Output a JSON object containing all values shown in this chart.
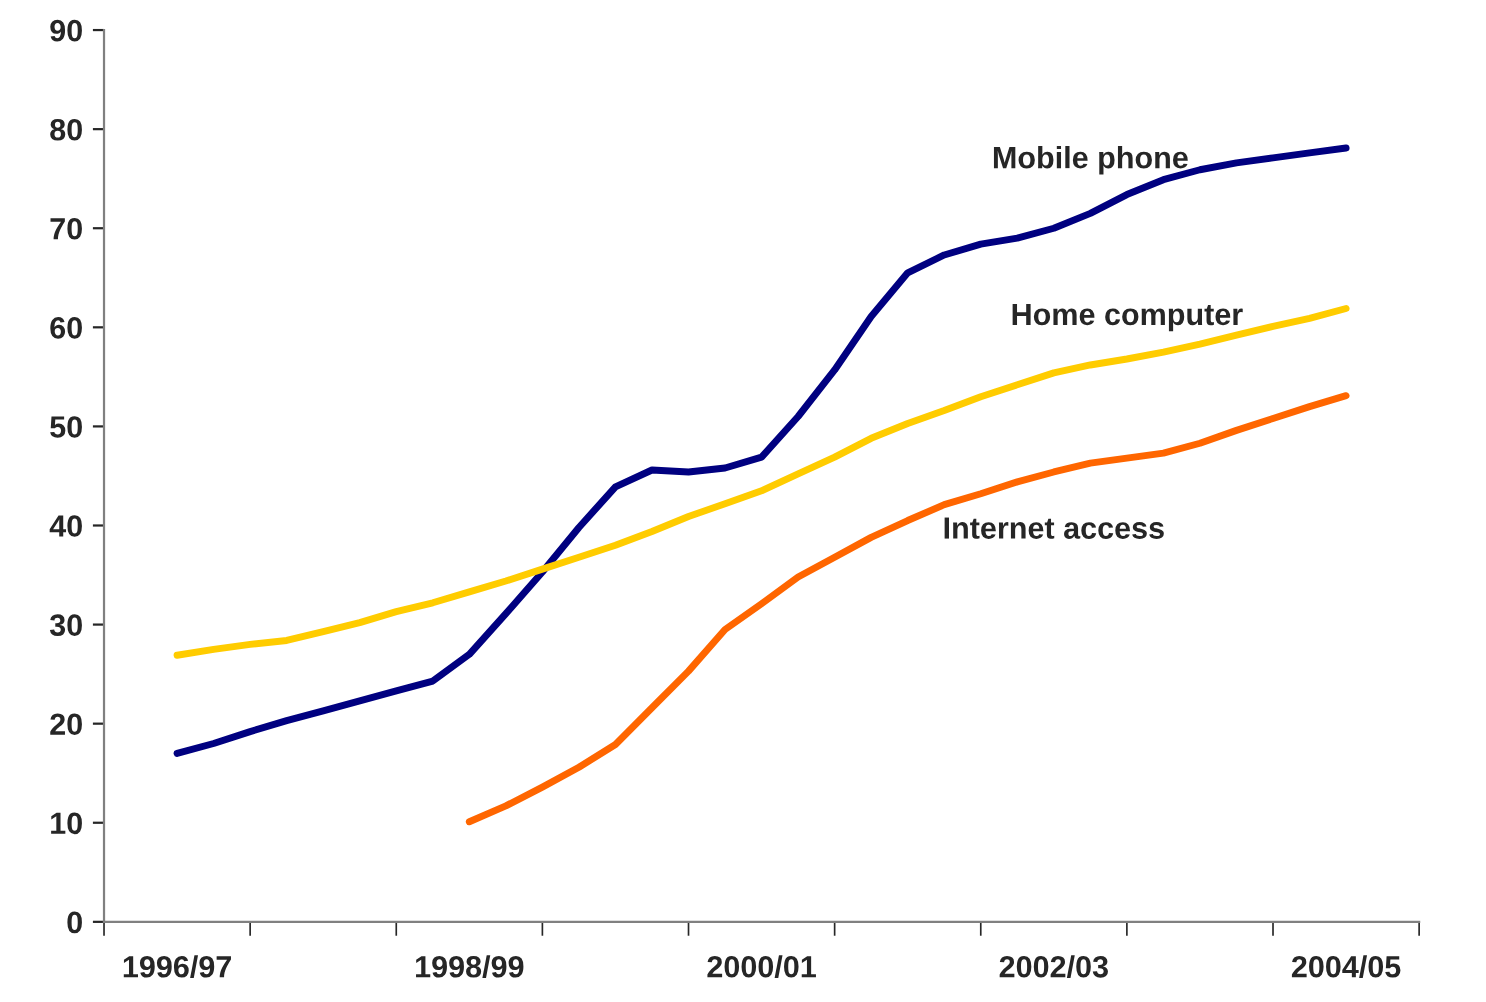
{
  "chart_data": {
    "type": "line",
    "categories": [
      "1996/97",
      null,
      null,
      null,
      null,
      null,
      null,
      null,
      "1998/99",
      null,
      null,
      null,
      null,
      null,
      null,
      null,
      "2000/01",
      null,
      null,
      null,
      null,
      null,
      null,
      null,
      "2002/03",
      null,
      null,
      null,
      null,
      null,
      null,
      null,
      "2004/05"
    ],
    "series": [
      {
        "name": "Mobile phone",
        "color": "#000080",
        "values": [
          17,
          18,
          19.2,
          20.3,
          21.3,
          22.3,
          23.3,
          24.3,
          27.0,
          31.1,
          35.3,
          39.8,
          43.9,
          45.6,
          45.4,
          45.8,
          46.9,
          51.0,
          55.7,
          61.1,
          65.5,
          67.3,
          68.4,
          69.0,
          70.0,
          71.5,
          73.4,
          74.9,
          75.9,
          76.6,
          77.1,
          77.6,
          78.1
        ]
      },
      {
        "name": "Home computer",
        "color": "#ffcc00",
        "values": [
          26.9,
          27.5,
          28.0,
          28.4,
          29.3,
          30.2,
          31.3,
          32.2,
          33.3,
          34.4,
          35.6,
          36.8,
          38.0,
          39.4,
          40.9,
          42.2,
          43.5,
          45.2,
          46.9,
          48.8,
          50.3,
          51.6,
          53.0,
          54.2,
          55.4,
          56.2,
          56.8,
          57.5,
          58.3,
          59.2,
          60.1,
          60.9,
          61.9
        ]
      },
      {
        "name": "Internet access",
        "color": "#ff6600",
        "values": [
          null,
          null,
          null,
          null,
          null,
          null,
          null,
          null,
          10.1,
          11.7,
          13.6,
          15.6,
          17.9,
          21.6,
          25.3,
          29.5,
          32.1,
          34.8,
          36.8,
          38.8,
          40.5,
          42.1,
          43.2,
          44.4,
          45.4,
          46.3,
          46.8,
          47.3,
          48.3,
          49.6,
          50.8,
          52.0,
          53.1
        ]
      }
    ],
    "ylim": [
      0,
      90
    ],
    "yticks": [
      0,
      10,
      20,
      30,
      40,
      50,
      60,
      70,
      80,
      90
    ],
    "grid": false,
    "legend": false,
    "marker": "none",
    "line_style": "solid"
  }
}
